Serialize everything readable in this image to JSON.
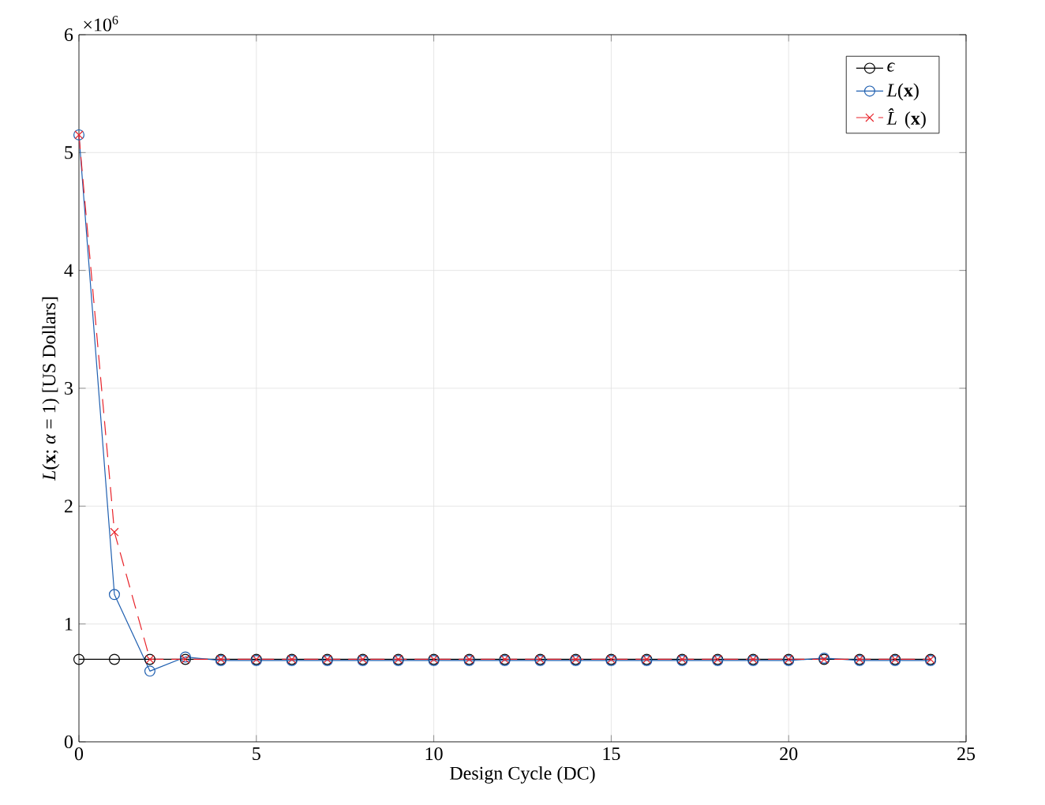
{
  "chart_data": {
    "type": "line",
    "xlabel": "Design Cycle (DC)",
    "ylabel": "*L*(**x**; *α* = 1) [US Dollars]",
    "annotations": [
      "×10$^{6}$"
    ],
    "x": [
      0,
      1,
      2,
      3,
      4,
      5,
      6,
      7,
      8,
      9,
      10,
      11,
      12,
      13,
      14,
      15,
      16,
      17,
      18,
      19,
      20,
      21,
      22,
      23,
      24
    ],
    "series": [
      {
        "name": "*ϵ*",
        "color": "#000000",
        "marker": "circle",
        "line_style": "solid",
        "values": [
          0.7,
          0.7,
          0.7,
          0.7,
          0.7,
          0.7,
          0.7,
          0.7,
          0.7,
          0.7,
          0.7,
          0.7,
          0.7,
          0.7,
          0.7,
          0.7,
          0.7,
          0.7,
          0.7,
          0.7,
          0.7,
          0.7,
          0.7,
          0.7,
          0.7
        ]
      },
      {
        "name": "*L*(**x**)",
        "color": "#1f5fb0",
        "marker": "circle",
        "line_style": "solid",
        "values": [
          5.15,
          1.25,
          0.6,
          0.72,
          0.69,
          0.69,
          0.69,
          0.69,
          0.69,
          0.69,
          0.69,
          0.69,
          0.69,
          0.69,
          0.69,
          0.69,
          0.69,
          0.69,
          0.69,
          0.69,
          0.69,
          0.71,
          0.69,
          0.69,
          0.69
        ]
      },
      {
        "name": "*L̂*(**x**)",
        "color": "#e8232a",
        "marker": "cross",
        "line_style": "dashed",
        "values": [
          5.15,
          1.78,
          0.7,
          0.7,
          0.7,
          0.7,
          0.7,
          0.7,
          0.7,
          0.7,
          0.7,
          0.7,
          0.7,
          0.7,
          0.7,
          0.7,
          0.7,
          0.7,
          0.7,
          0.7,
          0.7,
          0.7,
          0.7,
          0.7,
          0.7
        ]
      }
    ],
    "xlim": [
      0,
      25
    ],
    "ylim": [
      0,
      6
    ],
    "xticks": [
      0,
      5,
      10,
      15,
      20,
      25
    ],
    "yticks": [
      0,
      1,
      2,
      3,
      4,
      5,
      6
    ],
    "grid": true,
    "legend": "top right"
  }
}
